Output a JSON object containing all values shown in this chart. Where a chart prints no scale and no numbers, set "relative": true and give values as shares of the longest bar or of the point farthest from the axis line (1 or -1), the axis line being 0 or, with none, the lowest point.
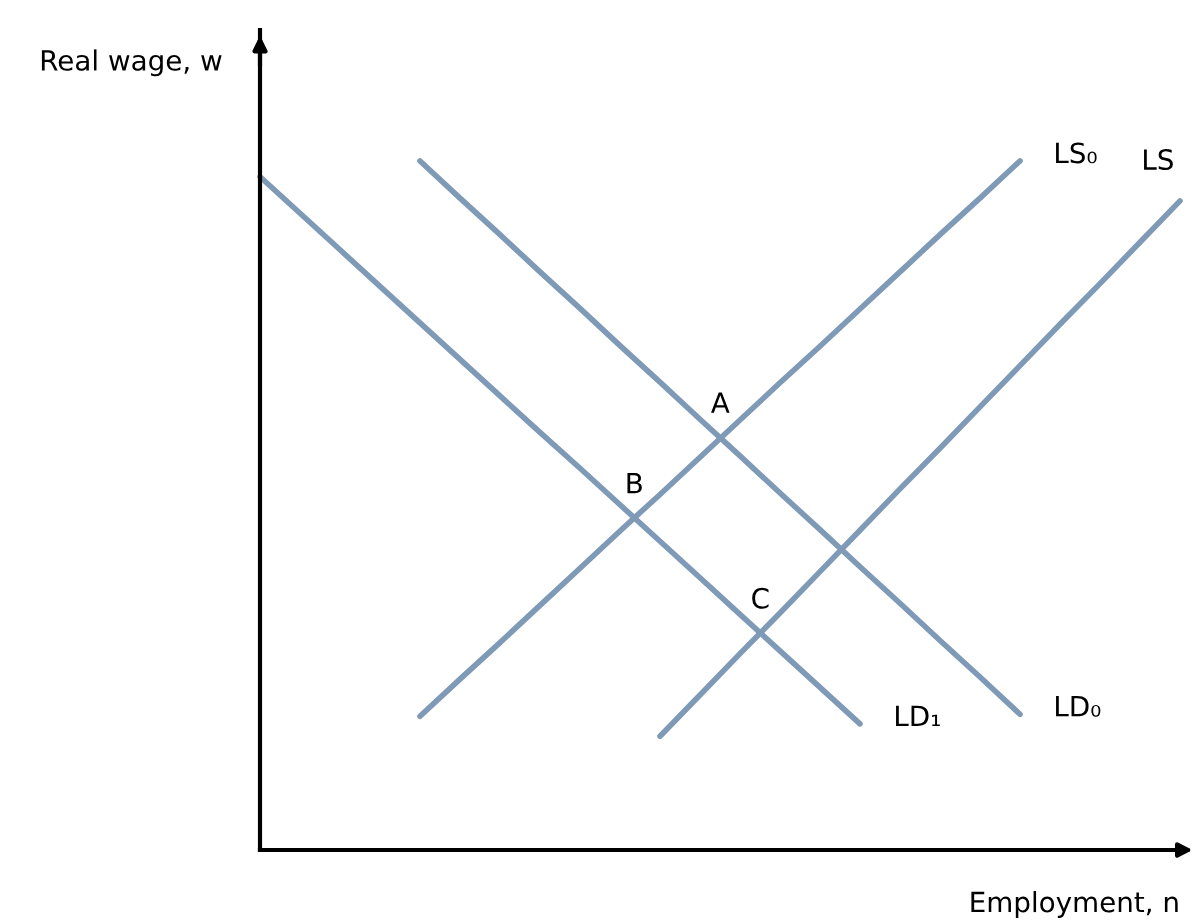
{
  "chart_data": {
    "type": "line",
    "relative": true,
    "xlabel": "Employment, n",
    "ylabel": "Real wage, w",
    "marker": "none",
    "line_style": "solid",
    "categories": [
      null,
      null,
      null,
      null,
      null,
      null,
      null,
      null,
      null,
      null,
      null,
      null,
      null,
      null,
      null,
      null,
      null,
      null,
      null,
      null,
      null,
      null,
      null,
      null
    ],
    "series": [
      {
        "name": "LD₁",
        "color": "#7f9ab6",
        "values": [
          0.977,
          0.924,
          0.871,
          0.818,
          0.765,
          0.712,
          0.659,
          0.606,
          0.554,
          0.501,
          0.448,
          0.395,
          0.342,
          0.289,
          0.236,
          0.183,
          null,
          null,
          null,
          null,
          null,
          null,
          null,
          null
        ]
      },
      {
        "name": "LD₀",
        "color": "#7f9ab6",
        "values": [
          null,
          null,
          null,
          null,
          1.0,
          0.946,
          0.893,
          0.839,
          0.786,
          0.732,
          0.679,
          0.625,
          0.572,
          0.518,
          0.465,
          0.411,
          0.358,
          0.304,
          0.251,
          0.197,
          null,
          null,
          null,
          null
        ]
      },
      {
        "name": "LS₀",
        "color": "#7f9ab6",
        "values": [
          null,
          null,
          null,
          null,
          0.194,
          0.248,
          0.301,
          0.355,
          0.409,
          0.463,
          0.516,
          0.57,
          0.624,
          0.678,
          0.731,
          0.785,
          0.839,
          0.893,
          0.946,
          1.0,
          null,
          null,
          null,
          null
        ]
      },
      {
        "name": "LS",
        "color": "#7f9ab6",
        "values": [
          null,
          null,
          null,
          null,
          null,
          null,
          null,
          null,
          null,
          null,
          0.165,
          0.225,
          0.285,
          0.344,
          0.404,
          0.464,
          0.524,
          0.583,
          0.643,
          0.703,
          0.763,
          0.822,
          0.882,
          0.942
        ]
      }
    ],
    "annotations": [
      {
        "text": "A",
        "y": 0.598
      },
      {
        "text": "B",
        "y": 0.481
      },
      {
        "text": "C",
        "y": 0.314
      }
    ]
  }
}
